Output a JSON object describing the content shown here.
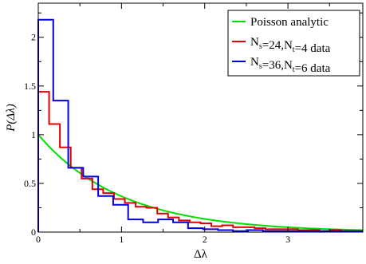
{
  "chart_data": {
    "type": "line",
    "xlabel": "Δλ",
    "ylabel": "P(Δλ)",
    "xlim": [
      0,
      3.9
    ],
    "ylim": [
      0,
      2.35
    ],
    "x_ticks": [
      0,
      1,
      2,
      3
    ],
    "y_ticks": [
      0,
      0.5,
      1,
      1.5,
      2
    ],
    "grid": false,
    "legend_position": "top-right",
    "series": [
      {
        "name": "Poisson analytic",
        "color": "#00e000",
        "style": "curve",
        "function": "exp(-x)",
        "x_range": [
          0,
          3.9
        ]
      },
      {
        "name": "N_s=24,N_t=4 data",
        "legend": {
          "base1": "N",
          "sub1": "s",
          "mid": "=24,N",
          "sub2": "t",
          "tail": "=4 data"
        },
        "color": "#e00000",
        "style": "step",
        "bin_edges": [
          0,
          0.13,
          0.26,
          0.39,
          0.52,
          0.65,
          0.78,
          0.91,
          1.04,
          1.17,
          1.3,
          1.43,
          1.56,
          1.69,
          1.82,
          1.95,
          2.08,
          2.21,
          2.34,
          2.47,
          2.6,
          2.73,
          2.86,
          2.99,
          3.12,
          3.25,
          3.38,
          3.51,
          3.64,
          3.77,
          3.9
        ],
        "values": [
          1.44,
          1.11,
          0.87,
          0.66,
          0.55,
          0.44,
          0.4,
          0.34,
          0.3,
          0.26,
          0.25,
          0.19,
          0.15,
          0.12,
          0.1,
          0.09,
          0.06,
          0.07,
          0.05,
          0.05,
          0.04,
          0.03,
          0.03,
          0.03,
          0.02,
          0.02,
          0.01,
          0.02,
          0.01,
          0.01
        ]
      },
      {
        "name": "N_s=36,N_t=6 data",
        "legend": {
          "base1": "N",
          "sub1": "s",
          "mid": "=36,N",
          "sub2": "t",
          "tail": "=6 data"
        },
        "color": "#0000e0",
        "style": "step",
        "bin_edges": [
          0,
          0.18,
          0.36,
          0.54,
          0.72,
          0.9,
          1.08,
          1.26,
          1.44,
          1.62,
          1.8,
          1.98,
          2.16,
          2.34,
          2.52,
          2.7,
          2.88,
          3.06,
          3.24,
          3.42,
          3.6,
          3.78,
          3.9
        ],
        "values": [
          2.18,
          1.35,
          0.66,
          0.57,
          0.37,
          0.28,
          0.13,
          0.1,
          0.13,
          0.1,
          0.04,
          0.03,
          0.02,
          0.01,
          0.02,
          0.01,
          0.01,
          0.01,
          0.01,
          0.01,
          0.01,
          0.01
        ]
      }
    ]
  }
}
